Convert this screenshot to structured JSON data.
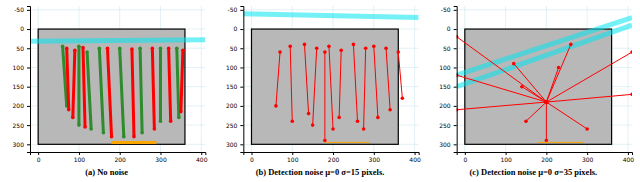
{
  "chart_data": [
    {
      "type": "line",
      "title": "(a) No noise",
      "xlim": [
        -20,
        410
      ],
      "ylim": [
        320,
        -60
      ],
      "xticks": [
        0,
        100,
        200,
        300,
        400
      ],
      "yticks": [
        -50,
        0,
        50,
        100,
        150,
        200,
        250,
        300
      ],
      "grid": true,
      "image_extent": {
        "x": [
          0,
          360
        ],
        "y": [
          0,
          300
        ]
      },
      "series": [
        {
          "color": "#00e5ee",
          "line_style": "band",
          "marker": "none",
          "x": [
            -20,
            410
          ],
          "values": [
            32,
            28
          ]
        },
        {
          "color": "#2e8b2e",
          "line_style": "solid",
          "marker": "circle",
          "x": [
            60,
            70
          ],
          "values": [
            45,
            200
          ]
        },
        {
          "color": "#2e8b2e",
          "line_style": "solid",
          "marker": "circle",
          "x": [
            100,
            100
          ],
          "values": [
            45,
            250
          ]
        },
        {
          "color": "#2e8b2e",
          "line_style": "solid",
          "marker": "circle",
          "x": [
            150,
            160
          ],
          "values": [
            50,
            270
          ]
        },
        {
          "color": "#2e8b2e",
          "line_style": "solid",
          "marker": "circle",
          "x": [
            200,
            210
          ],
          "values": [
            50,
            280
          ]
        },
        {
          "color": "#2e8b2e",
          "line_style": "solid",
          "marker": "circle",
          "x": [
            250,
            255
          ],
          "values": [
            50,
            270
          ]
        },
        {
          "color": "#2e8b2e",
          "line_style": "solid",
          "marker": "circle",
          "x": [
            300,
            300
          ],
          "values": [
            50,
            240
          ]
        },
        {
          "color": "#2e8b2e",
          "line_style": "solid",
          "marker": "circle",
          "x": [
            340,
            345
          ],
          "values": [
            50,
            230
          ]
        },
        {
          "color": "#2e8b2e",
          "line_style": "solid",
          "marker": "circle",
          "x": [
            120,
            130
          ],
          "values": [
            60,
            260
          ]
        },
        {
          "color": "#ff0000",
          "line_style": "solid",
          "marker": "circle",
          "x": [
            70,
            75
          ],
          "values": [
            50,
            210
          ]
        },
        {
          "color": "#ff0000",
          "line_style": "solid",
          "marker": "circle",
          "x": [
            110,
            115
          ],
          "values": [
            48,
            255
          ]
        },
        {
          "color": "#ff0000",
          "line_style": "solid",
          "marker": "circle",
          "x": [
            170,
            180
          ],
          "values": [
            50,
            280
          ]
        },
        {
          "color": "#ff0000",
          "line_style": "solid",
          "marker": "circle",
          "x": [
            230,
            235
          ],
          "values": [
            52,
            280
          ]
        },
        {
          "color": "#ff0000",
          "line_style": "solid",
          "marker": "circle",
          "x": [
            280,
            285
          ],
          "values": [
            50,
            260
          ]
        },
        {
          "color": "#ff0000",
          "line_style": "solid",
          "marker": "circle",
          "x": [
            320,
            325
          ],
          "values": [
            50,
            240
          ]
        },
        {
          "color": "#ff0000",
          "line_style": "solid",
          "marker": "circle",
          "x": [
            355,
            350
          ],
          "values": [
            55,
            215
          ]
        },
        {
          "color": "#ff0000",
          "line_style": "solid",
          "marker": "circle",
          "x": [
            90,
            85
          ],
          "values": [
            55,
            230
          ]
        },
        {
          "color": "#ffa500",
          "line_style": "solid",
          "marker": "none",
          "x": [
            180,
            290
          ],
          "values": [
            295,
            295
          ]
        }
      ]
    },
    {
      "type": "line",
      "title": "(b) Detection noise μ=0 σ=15 pixels.",
      "xlim": [
        -20,
        410
      ],
      "ylim": [
        320,
        -60
      ],
      "xticks": [
        0,
        100,
        200,
        300,
        400
      ],
      "yticks": [
        -50,
        0,
        50,
        100,
        150,
        200,
        250,
        300
      ],
      "grid": true,
      "image_extent": {
        "x": [
          0,
          360
        ],
        "y": [
          0,
          300
        ]
      },
      "series": [
        {
          "color": "#00e5ee",
          "line_style": "band",
          "marker": "none",
          "x": [
            -20,
            410
          ],
          "values": [
            -40,
            -30
          ]
        },
        {
          "color": "#ff0000",
          "line_style": "solid",
          "marker": "circle",
          "x": [
            70,
            60
          ],
          "values": [
            60,
            200
          ]
        },
        {
          "color": "#ff0000",
          "line_style": "solid",
          "marker": "circle",
          "x": [
            95,
            100
          ],
          "values": [
            45,
            240
          ]
        },
        {
          "color": "#ff0000",
          "line_style": "solid",
          "marker": "circle",
          "x": [
            130,
            140
          ],
          "values": [
            40,
            220
          ]
        },
        {
          "color": "#ff0000",
          "line_style": "solid",
          "marker": "circle",
          "x": [
            160,
            150
          ],
          "values": [
            50,
            250
          ]
        },
        {
          "color": "#ff0000",
          "line_style": "solid",
          "marker": "circle",
          "x": [
            190,
            200
          ],
          "values": [
            45,
            260
          ]
        },
        {
          "color": "#ff0000",
          "line_style": "solid",
          "marker": "circle",
          "x": [
            220,
            215
          ],
          "values": [
            55,
            230
          ]
        },
        {
          "color": "#ff0000",
          "line_style": "solid",
          "marker": "circle",
          "x": [
            250,
            260
          ],
          "values": [
            40,
            240
          ]
        },
        {
          "color": "#ff0000",
          "line_style": "solid",
          "marker": "circle",
          "x": [
            280,
            275
          ],
          "values": [
            50,
            260
          ]
        },
        {
          "color": "#ff0000",
          "line_style": "solid",
          "marker": "circle",
          "x": [
            300,
            310
          ],
          "values": [
            45,
            230
          ]
        },
        {
          "color": "#ff0000",
          "line_style": "solid",
          "marker": "circle",
          "x": [
            330,
            340
          ],
          "values": [
            50,
            210
          ]
        },
        {
          "color": "#ff0000",
          "line_style": "solid",
          "marker": "circle",
          "x": [
            360,
            370
          ],
          "values": [
            60,
            180
          ]
        },
        {
          "color": "#ff0000",
          "line_style": "solid",
          "marker": "circle",
          "x": [
            180,
            180
          ],
          "values": [
            60,
            290
          ]
        },
        {
          "color": "#ffa500",
          "line_style": "solid",
          "marker": "none",
          "x": [
            180,
            290
          ],
          "values": [
            295,
            295
          ]
        }
      ]
    },
    {
      "type": "line",
      "title": "(c) Detection noise μ=0 σ=35 pixels.",
      "xlim": [
        -20,
        410
      ],
      "ylim": [
        320,
        -60
      ],
      "xticks": [
        0,
        100,
        200,
        300,
        400
      ],
      "yticks": [
        -50,
        0,
        50,
        100,
        150,
        200,
        250,
        300
      ],
      "grid": true,
      "image_extent": {
        "x": [
          0,
          360
        ],
        "y": [
          0,
          300
        ]
      },
      "series": [
        {
          "color": "#00e5ee",
          "line_style": "band",
          "marker": "none",
          "x": [
            -20,
            410
          ],
          "values": [
            150,
            -10
          ]
        },
        {
          "color": "#00e5ee",
          "line_style": "band",
          "marker": "none",
          "x": [
            -20,
            410
          ],
          "values": [
            120,
            -30
          ]
        },
        {
          "color": "#ff0000",
          "line_style": "solid",
          "marker": "circle",
          "x": [
            200,
            -20
          ],
          "values": [
            190,
            120
          ]
        },
        {
          "color": "#ff0000",
          "line_style": "solid",
          "marker": "circle",
          "x": [
            200,
            -20
          ],
          "values": [
            190,
            210
          ]
        },
        {
          "color": "#ff0000",
          "line_style": "solid",
          "marker": "circle",
          "x": [
            200,
            120
          ],
          "values": [
            190,
            90
          ]
        },
        {
          "color": "#ff0000",
          "line_style": "solid",
          "marker": "circle",
          "x": [
            200,
            260
          ],
          "values": [
            190,
            40
          ]
        },
        {
          "color": "#ff0000",
          "line_style": "solid",
          "marker": "circle",
          "x": [
            200,
            410
          ],
          "values": [
            190,
            60
          ]
        },
        {
          "color": "#ff0000",
          "line_style": "solid",
          "marker": "circle",
          "x": [
            200,
            410
          ],
          "values": [
            190,
            170
          ]
        },
        {
          "color": "#ff0000",
          "line_style": "solid",
          "marker": "circle",
          "x": [
            200,
            300
          ],
          "values": [
            190,
            260
          ]
        },
        {
          "color": "#ff0000",
          "line_style": "solid",
          "marker": "circle",
          "x": [
            200,
            150
          ],
          "values": [
            190,
            240
          ]
        },
        {
          "color": "#ff0000",
          "line_style": "solid",
          "marker": "circle",
          "x": [
            200,
            140
          ],
          "values": [
            190,
            150
          ]
        },
        {
          "color": "#ff0000",
          "line_style": "solid",
          "marker": "circle",
          "x": [
            200,
            230
          ],
          "values": [
            190,
            100
          ]
        },
        {
          "color": "#ff0000",
          "line_style": "solid",
          "marker": "circle",
          "x": [
            200,
            200
          ],
          "values": [
            190,
            290
          ]
        },
        {
          "color": "#ff0000",
          "line_style": "solid",
          "marker": "circle",
          "x": [
            200,
            -20
          ],
          "values": [
            190,
            20
          ]
        },
        {
          "color": "#ffa500",
          "line_style": "solid",
          "marker": "none",
          "x": [
            180,
            290
          ],
          "values": [
            295,
            295
          ]
        }
      ]
    }
  ]
}
